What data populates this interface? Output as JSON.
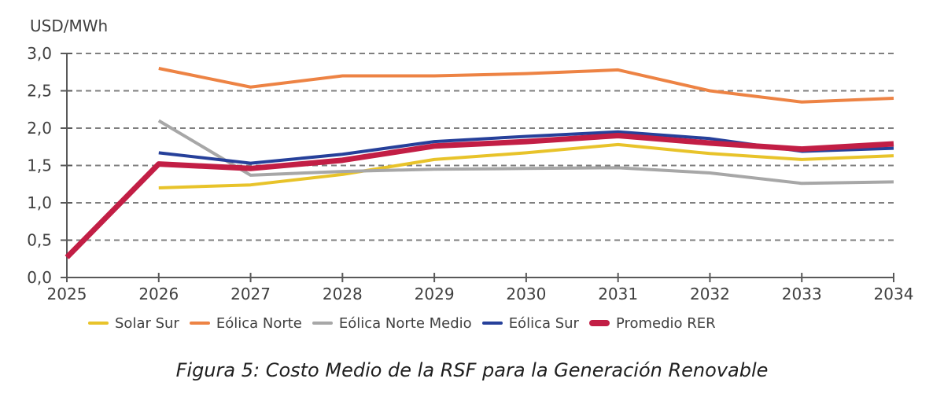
{
  "chart_data": {
    "type": "line",
    "unit_label": "USD/MWh",
    "x": [
      2025,
      2026,
      2027,
      2028,
      2029,
      2030,
      2031,
      2032,
      2033,
      2034
    ],
    "ylim": [
      0.0,
      3.0
    ],
    "y_ticks": [
      0.0,
      0.5,
      1.0,
      1.5,
      2.0,
      2.5,
      3.0
    ],
    "y_tick_labels": [
      "0,0",
      "0,5",
      "1,0",
      "1,5",
      "2,0",
      "2,5",
      "3,0"
    ],
    "grid": "horizontal-dashed",
    "legend_position": "bottom",
    "series": [
      {
        "name": "Solar Sur",
        "color": "#E8C32A",
        "line_width": 4,
        "values": [
          null,
          1.2,
          1.24,
          1.38,
          1.58,
          1.67,
          1.78,
          1.66,
          1.58,
          1.63
        ]
      },
      {
        "name": "Eólica Norte",
        "color": "#ED8344",
        "line_width": 4,
        "values": [
          null,
          2.8,
          2.55,
          2.7,
          2.7,
          2.73,
          2.78,
          2.5,
          2.35,
          2.4
        ]
      },
      {
        "name": "Eólica Norte Medio",
        "color": "#A7A7A7",
        "line_width": 4,
        "values": [
          null,
          2.1,
          1.37,
          1.42,
          1.45,
          1.46,
          1.47,
          1.4,
          1.26,
          1.28
        ]
      },
      {
        "name": "Eólica Sur",
        "color": "#26409A",
        "line_width": 4,
        "values": [
          null,
          1.67,
          1.53,
          1.65,
          1.82,
          1.89,
          1.95,
          1.86,
          1.69,
          1.73
        ]
      },
      {
        "name": "Promedio RER",
        "color": "#C21E45",
        "line_width": 7,
        "values": [
          0.27,
          1.52,
          1.46,
          1.57,
          1.76,
          1.82,
          1.9,
          1.8,
          1.72,
          1.79
        ]
      }
    ]
  },
  "caption": {
    "text": "Figura 5: Costo Medio de la RSF para la Generación Renovable"
  },
  "colors": {
    "background": "#FFFFFF",
    "grid": "#7F7F7F",
    "axis": "#595959",
    "tick_label": "#404040",
    "legend_text": "#404040",
    "caption_text": "#1F1F1F"
  }
}
